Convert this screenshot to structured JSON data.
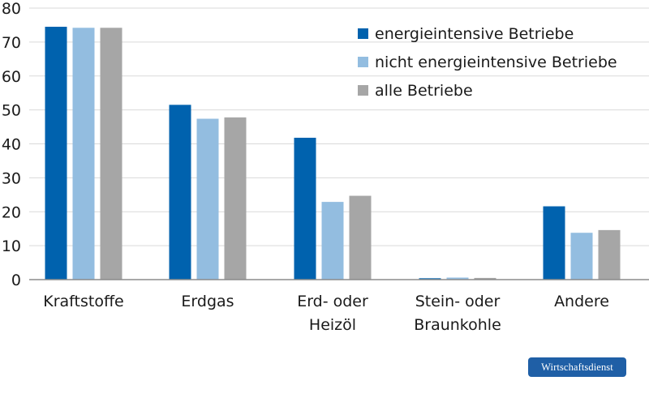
{
  "chart_data": {
    "type": "bar",
    "title": "",
    "xlabel": "",
    "ylabel": "",
    "ylim": [
      0,
      80
    ],
    "yticks": [
      0,
      10,
      20,
      30,
      40,
      50,
      60,
      70,
      80
    ],
    "grid": true,
    "legend_position": "top-right",
    "categories": [
      [
        "Kraftstoffe"
      ],
      [
        "Erdgas"
      ],
      [
        "Erd- oder",
        "Heizöl"
      ],
      [
        "Stein- oder",
        "Braunkohle"
      ],
      [
        "Andere"
      ]
    ],
    "series": [
      {
        "name": "energieintensive Betriebe",
        "color": "#0062ae",
        "values": [
          74.5,
          51.5,
          41.8,
          0.4,
          21.6
        ]
      },
      {
        "name": "nicht energieintensive Betriebe",
        "color": "#93bde0",
        "values": [
          74.2,
          47.4,
          22.9,
          0.6,
          13.8
        ]
      },
      {
        "name": "alle Betriebe",
        "color": "#a6a6a6",
        "values": [
          74.2,
          47.8,
          24.7,
          0.5,
          14.6
        ]
      }
    ]
  },
  "brand": {
    "label": "Wirtschaftsdienst",
    "color": "#1f5fa6"
  }
}
